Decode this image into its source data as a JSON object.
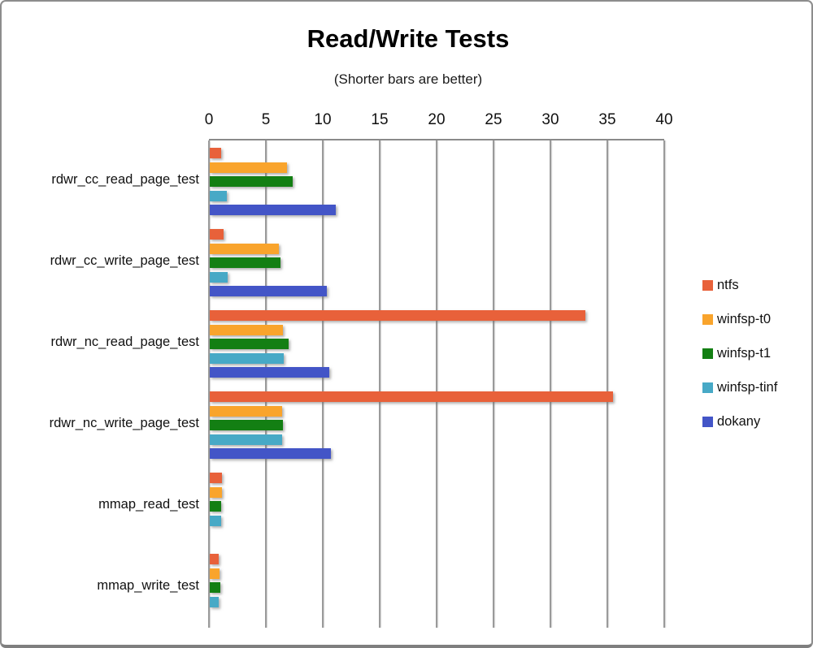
{
  "window": {
    "background": "#ffffff",
    "frame_border_color": "#8d8d8d"
  },
  "chart_data": {
    "type": "bar",
    "orientation": "horizontal",
    "title": "Read/Write Tests",
    "subtitle": "(Shorter bars are better)",
    "categories": [
      "rdwr_cc_read_page_test",
      "rdwr_cc_write_page_test",
      "rdwr_nc_read_page_test",
      "rdwr_nc_write_page_test",
      "mmap_read_test",
      "mmap_write_test"
    ],
    "series": [
      {
        "name": "ntfs",
        "color": "#E8613A",
        "values": [
          1.0,
          1.2,
          33.0,
          35.4,
          1.1,
          0.8
        ]
      },
      {
        "name": "winfsp-t0",
        "color": "#F9A42C",
        "values": [
          6.8,
          6.1,
          6.4,
          6.35,
          1.1,
          0.85
        ]
      },
      {
        "name": "winfsp-t1",
        "color": "#137F13",
        "values": [
          7.3,
          6.2,
          6.9,
          6.4,
          1.0,
          0.9
        ]
      },
      {
        "name": "winfsp-tinf",
        "color": "#47A9C6",
        "values": [
          1.5,
          1.6,
          6.5,
          6.35,
          1.0,
          0.8
        ]
      },
      {
        "name": "dokany",
        "color": "#4355C7",
        "values": [
          11.1,
          10.3,
          10.5,
          10.65,
          null,
          null
        ]
      }
    ],
    "x_axis": {
      "min": 0,
      "max": 40,
      "tick_step": 5,
      "tick_labels": [
        "0",
        "5",
        "10",
        "15",
        "20",
        "25",
        "30",
        "35",
        "40"
      ]
    },
    "grid": true,
    "gridline_color": "#9a9a9a",
    "legend_position": "right"
  }
}
